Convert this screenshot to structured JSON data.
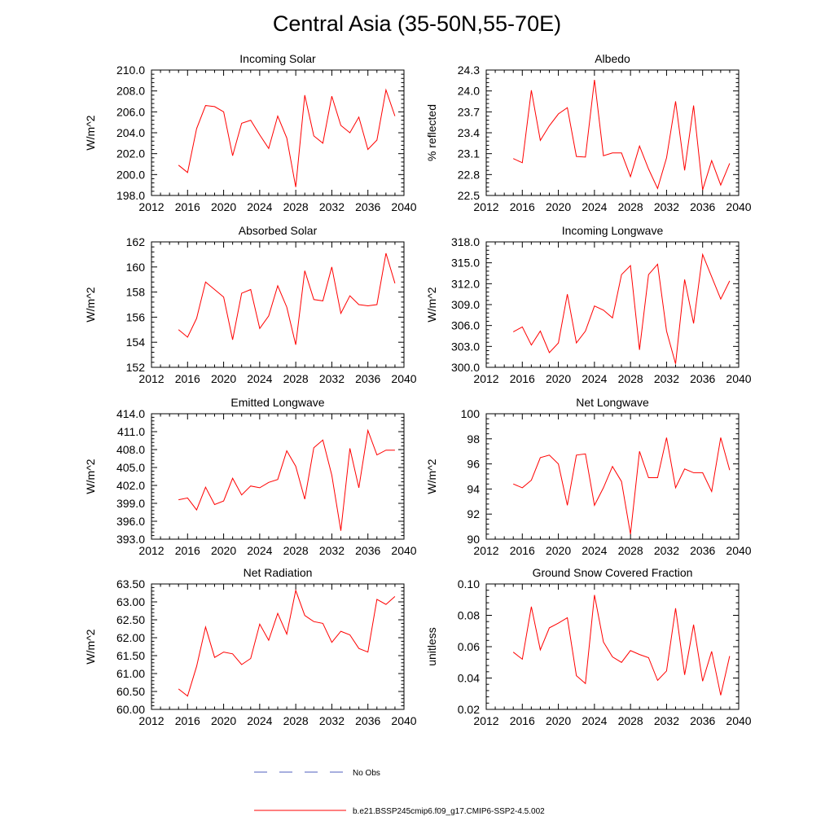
{
  "title": "Central Asia (35-50N,55-70E)",
  "years": [
    2015,
    2016,
    2017,
    2018,
    2019,
    2020,
    2021,
    2022,
    2023,
    2024,
    2025,
    2026,
    2027,
    2028,
    2029,
    2030,
    2031,
    2032,
    2033,
    2034,
    2035,
    2036,
    2037,
    2038,
    2039
  ],
  "xaxis": {
    "min": 2012,
    "max": 2040,
    "ticks": [
      "2012",
      "2016",
      "2020",
      "2024",
      "2028",
      "2032",
      "2036",
      "2040"
    ]
  },
  "colors": {
    "series": "#ff0000",
    "obs": "#4f5fbf",
    "axis": "#000000"
  },
  "legend": {
    "obs_label": "No Obs",
    "model_label": "b.e21.BSSP245cmip6.f09_g17.CMIP6-SSP2-4.5.002"
  },
  "chart_data": [
    {
      "type": "line",
      "title": "Incoming Solar",
      "ylabel": "W/m^2",
      "ylim": [
        198.0,
        210.0
      ],
      "yticks": [
        "198.0",
        "200.0",
        "202.0",
        "204.0",
        "206.0",
        "208.0",
        "210.0"
      ],
      "values": [
        200.9,
        200.2,
        204.4,
        206.6,
        206.5,
        206.0,
        201.8,
        204.9,
        205.2,
        203.8,
        202.5,
        205.6,
        203.5,
        198.8,
        207.6,
        203.7,
        203.0,
        207.5,
        204.7,
        204.0,
        205.5,
        202.4,
        203.3,
        208.1,
        205.6
      ]
    },
    {
      "type": "line",
      "title": "Albedo",
      "ylabel": "% reflected",
      "ylim": [
        22.5,
        24.3
      ],
      "yticks": [
        "22.5",
        "22.8",
        "23.1",
        "23.4",
        "23.7",
        "24.0",
        "24.3"
      ],
      "values": [
        23.03,
        22.97,
        24.01,
        23.29,
        23.5,
        23.67,
        23.76,
        23.06,
        23.05,
        24.16,
        23.07,
        23.11,
        23.11,
        22.77,
        23.21,
        22.88,
        22.6,
        23.04,
        23.85,
        22.86,
        23.79,
        22.58,
        23.0,
        22.65,
        22.96
      ]
    },
    {
      "type": "line",
      "title": "Absorbed Solar",
      "ylabel": "W/m^2",
      "ylim": [
        152,
        162
      ],
      "yticks": [
        "152",
        "154",
        "156",
        "158",
        "160",
        "162"
      ],
      "values": [
        155.0,
        154.4,
        155.9,
        158.8,
        158.2,
        157.6,
        154.2,
        157.9,
        158.2,
        155.1,
        156.1,
        158.5,
        156.8,
        153.8,
        159.7,
        157.4,
        157.3,
        160.0,
        156.3,
        157.7,
        157.0,
        156.9,
        157.0,
        161.1,
        158.7
      ]
    },
    {
      "type": "line",
      "title": "Incoming Longwave",
      "ylabel": "W/m^2",
      "ylim": [
        300.0,
        318.0
      ],
      "yticks": [
        "300.0",
        "303.0",
        "306.0",
        "309.0",
        "312.0",
        "315.0",
        "318.0"
      ],
      "values": [
        305.1,
        305.8,
        303.2,
        305.2,
        302.1,
        303.5,
        310.5,
        303.5,
        305.2,
        308.8,
        308.2,
        307.1,
        313.3,
        314.6,
        302.5,
        313.3,
        314.8,
        305.2,
        300.5,
        312.6,
        306.3,
        316.2,
        313.0,
        309.8,
        312.4
      ]
    },
    {
      "type": "line",
      "title": "Emitted Longwave",
      "ylabel": "W/m^2",
      "ylim": [
        393.0,
        414.0
      ],
      "yticks": [
        "393.0",
        "396.0",
        "399.0",
        "402.0",
        "405.0",
        "408.0",
        "411.0",
        "414.0"
      ],
      "values": [
        399.6,
        399.9,
        397.9,
        401.7,
        398.8,
        399.4,
        403.2,
        400.4,
        401.9,
        401.6,
        402.5,
        403.0,
        407.8,
        405.2,
        399.7,
        408.3,
        409.6,
        403.7,
        394.4,
        408.2,
        401.6,
        411.2,
        407.1,
        407.9,
        407.9
      ]
    },
    {
      "type": "line",
      "title": "Net Longwave",
      "ylabel": "W/m^2",
      "ylim": [
        90,
        100
      ],
      "yticks": [
        "90",
        "92",
        "94",
        "96",
        "98",
        "100"
      ],
      "values": [
        94.4,
        94.1,
        94.7,
        96.5,
        96.7,
        96.0,
        92.7,
        96.7,
        96.8,
        92.7,
        94.1,
        95.8,
        94.6,
        90.4,
        97.0,
        94.9,
        94.9,
        98.1,
        94.1,
        95.6,
        95.3,
        95.3,
        93.8,
        98.1,
        95.5
      ]
    },
    {
      "type": "line",
      "title": "Net Radiation",
      "ylabel": "W/m^2",
      "ylim": [
        60.0,
        63.5
      ],
      "yticks": [
        "60.00",
        "60.50",
        "61.00",
        "61.50",
        "62.00",
        "62.50",
        "63.00",
        "63.50"
      ],
      "values": [
        60.57,
        60.37,
        61.2,
        62.3,
        61.45,
        61.6,
        61.55,
        61.25,
        61.42,
        62.38,
        61.93,
        62.68,
        62.1,
        63.32,
        62.62,
        62.45,
        62.4,
        61.87,
        62.18,
        62.08,
        61.7,
        61.6,
        63.07,
        62.93,
        63.15
      ]
    },
    {
      "type": "line",
      "title": "Ground Snow Covered Fraction",
      "ylabel": "unitless",
      "ylim": [
        0.02,
        0.1
      ],
      "yticks": [
        "0.02",
        "0.04",
        "0.06",
        "0.08",
        "0.10"
      ],
      "values": [
        0.0565,
        0.052,
        0.0855,
        0.058,
        0.072,
        0.075,
        0.0785,
        0.0415,
        0.0365,
        0.093,
        0.063,
        0.0535,
        0.05,
        0.0575,
        0.055,
        0.053,
        0.0385,
        0.0445,
        0.0845,
        0.042,
        0.074,
        0.038,
        0.057,
        0.029,
        0.054
      ]
    }
  ]
}
